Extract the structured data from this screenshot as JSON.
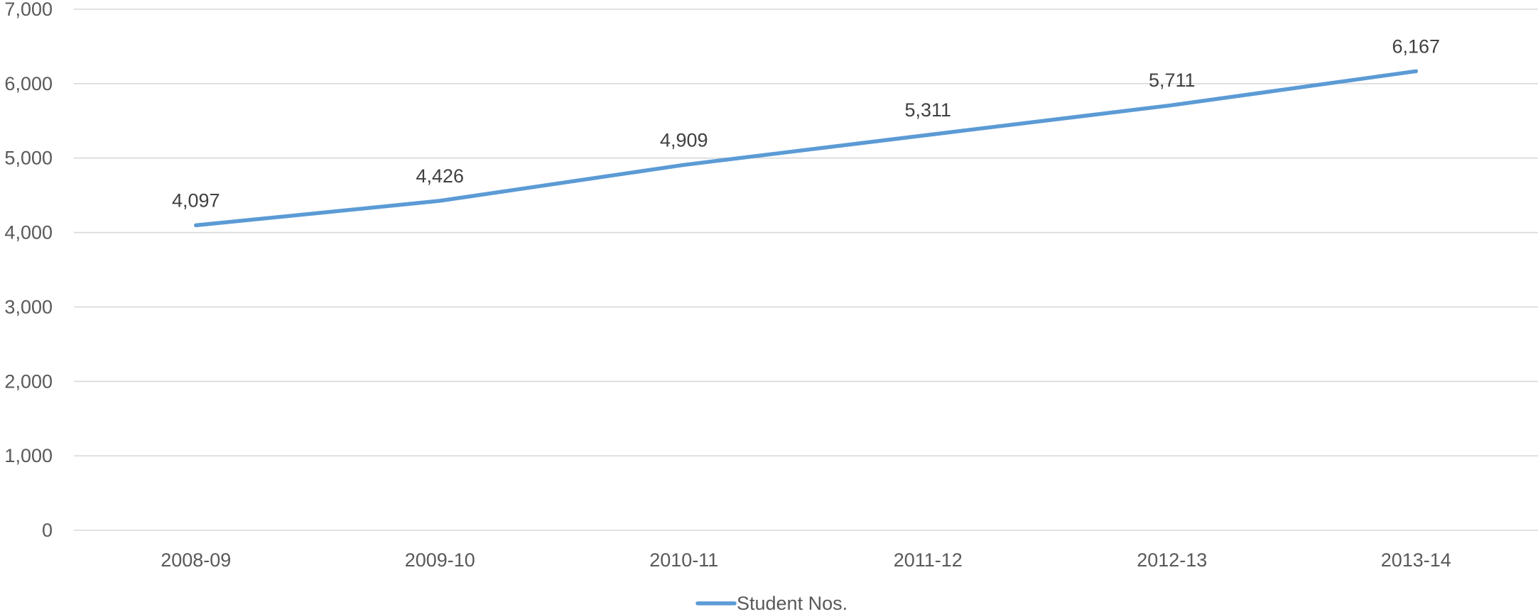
{
  "chart_data": {
    "type": "line",
    "title": "",
    "xlabel": "",
    "ylabel": "",
    "categories": [
      "2008-09",
      "2009-10",
      "2010-11",
      "2011-12",
      "2012-13",
      "2013-14"
    ],
    "series": [
      {
        "name": "Student Nos.",
        "values": [
          4097,
          4426,
          4909,
          5311,
          5711,
          6167
        ],
        "data_labels": [
          "4,097",
          "4,426",
          "4,909",
          "5,311",
          "5,711",
          "6,167"
        ]
      }
    ],
    "ylim": [
      0,
      7000
    ],
    "y_ticks": [
      0,
      1000,
      2000,
      3000,
      4000,
      5000,
      6000,
      7000
    ],
    "y_tick_labels": [
      "0",
      "1,000",
      "2,000",
      "3,000",
      "4,000",
      "5,000",
      "6,000",
      "7,000"
    ],
    "grid": true,
    "legend_position": "bottom",
    "line_color": "#5b9bd5",
    "gridline_color": "#d9d9d9",
    "text_color": "#595959"
  }
}
